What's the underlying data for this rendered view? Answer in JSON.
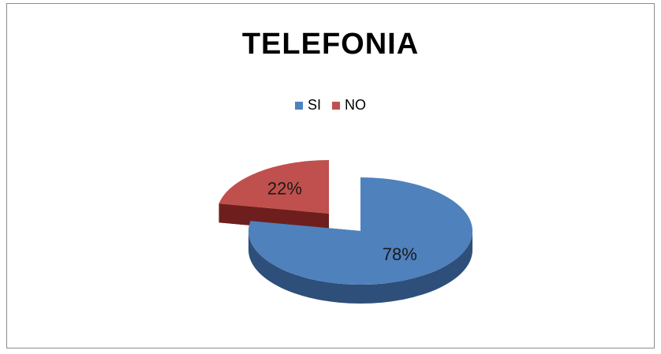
{
  "chart_data": {
    "type": "pie",
    "title": "TELEFONIA",
    "style": "3d-exploded",
    "legend_position": "top",
    "slices": [
      {
        "label": "SI",
        "value": 78,
        "display": "78%",
        "color": "#4f81bd",
        "side_color": "#2e4f7a"
      },
      {
        "label": "NO",
        "value": 22,
        "display": "22%",
        "color": "#c0504d",
        "side_color": "#6e1f1d"
      }
    ]
  }
}
